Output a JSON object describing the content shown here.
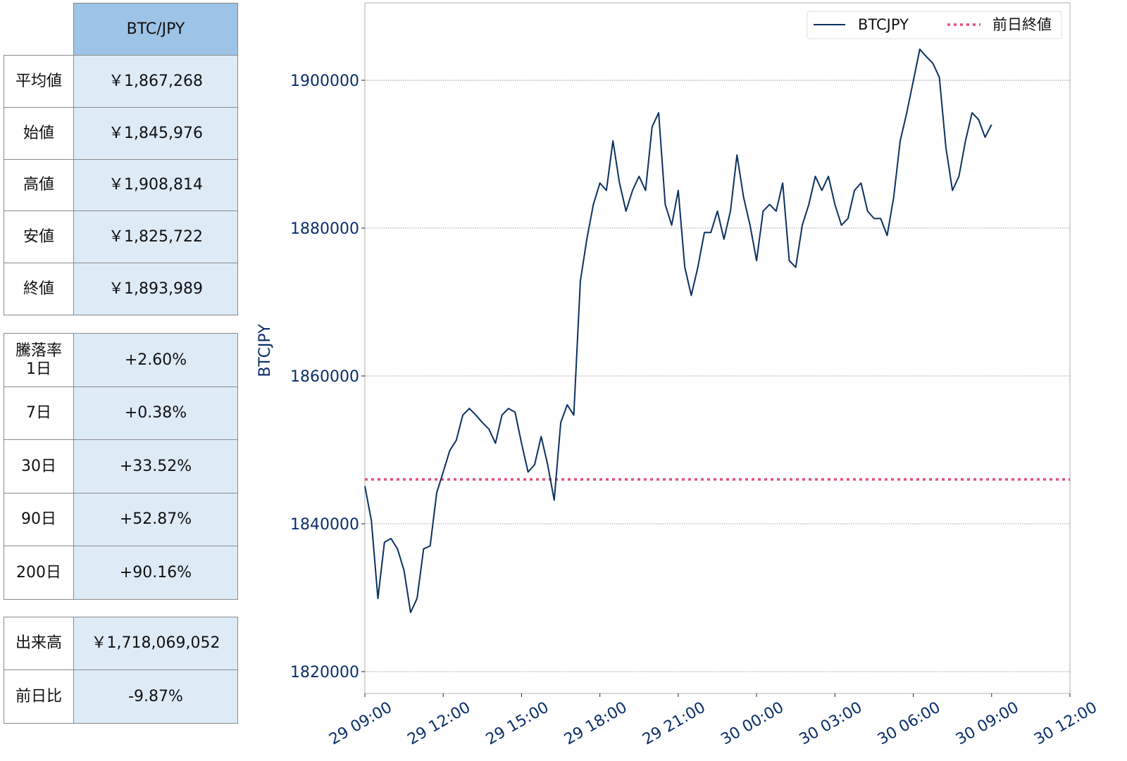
{
  "table": {
    "header": "BTC/JPY",
    "price_rows": [
      {
        "label": "平均値",
        "value": "￥1,867,268"
      },
      {
        "label": "始値",
        "value": "￥1,845,976"
      },
      {
        "label": "高値",
        "value": "￥1,908,814"
      },
      {
        "label": "安値",
        "value": "￥1,825,722"
      },
      {
        "label": "終値",
        "value": "￥1,893,989"
      }
    ],
    "change_rows": [
      {
        "label": "騰落率\n1日",
        "value": "+2.60%"
      },
      {
        "label": "7日",
        "value": "+0.38%"
      },
      {
        "label": "30日",
        "value": "+33.52%"
      },
      {
        "label": "90日",
        "value": "+52.87%"
      },
      {
        "label": "200日",
        "value": "+90.16%"
      }
    ],
    "volume_rows": [
      {
        "label": "出来高",
        "value": "￥1,718,069,052"
      },
      {
        "label": "前日比",
        "value": "-9.87%"
      }
    ]
  },
  "chart_data": {
    "type": "line",
    "ylabel": "BTCJPY",
    "xlabel": "",
    "ylim": [
      1817050,
      1910480
    ],
    "yticks": [
      "1820000",
      "1840000",
      "1860000",
      "1880000",
      "1900000"
    ],
    "xticks": [
      "29 09:00",
      "29 12:00",
      "29 15:00",
      "29 18:00",
      "29 21:00",
      "30 00:00",
      "30 03:00",
      "30 06:00",
      "30 09:00",
      "30 12:00"
    ],
    "grid": "horizontal dotted",
    "legend": "top-right",
    "colors": {
      "line": "#0b3160",
      "reference": "#e0507a"
    },
    "series": [
      {
        "name": "BTCJPY",
        "x": [
          "29 09:00",
          "29 09:15",
          "29 09:30",
          "29 09:45",
          "29 10:00",
          "29 10:15",
          "29 10:30",
          "29 10:45",
          "29 11:00",
          "29 11:15",
          "29 11:30",
          "29 11:45",
          "29 12:00",
          "29 12:15",
          "29 12:30",
          "29 12:45",
          "29 13:00",
          "29 13:15",
          "29 13:30",
          "29 13:45",
          "29 14:00",
          "29 14:15",
          "29 14:30",
          "29 14:45",
          "29 15:00",
          "29 15:15",
          "29 15:30",
          "29 15:45",
          "29 16:00",
          "29 16:15",
          "29 16:30",
          "29 16:45",
          "29 17:00",
          "29 17:15",
          "29 17:30",
          "29 17:45",
          "29 18:00",
          "29 18:15",
          "29 18:30",
          "29 18:45",
          "29 19:00",
          "29 19:15",
          "29 19:30",
          "29 19:45",
          "29 20:00",
          "29 20:15",
          "29 20:30",
          "29 20:45",
          "29 21:00",
          "29 21:15",
          "29 21:30",
          "29 21:45",
          "29 22:00",
          "29 22:15",
          "29 22:30",
          "29 22:45",
          "29 23:00",
          "29 23:15",
          "29 23:30",
          "29 23:45",
          "30 00:00",
          "30 00:15",
          "30 00:30",
          "30 00:45",
          "30 01:00",
          "30 01:15",
          "30 01:30",
          "30 01:45",
          "30 02:00",
          "30 02:15",
          "30 02:30",
          "30 02:45",
          "30 03:00",
          "30 03:15",
          "30 03:30",
          "30 03:45",
          "30 04:00",
          "30 04:15",
          "30 04:30",
          "30 04:45",
          "30 05:00",
          "30 05:15",
          "30 05:30",
          "30 05:45",
          "30 06:00",
          "30 06:15",
          "30 06:30",
          "30 06:45",
          "30 07:00",
          "30 07:15",
          "30 07:30",
          "30 07:45",
          "30 08:00",
          "30 08:15",
          "30 08:30",
          "30 08:45",
          "30 09:00"
        ],
        "values": [
          1845100,
          1840400,
          1829900,
          1837500,
          1838000,
          1836600,
          1833700,
          1828000,
          1829900,
          1836600,
          1837000,
          1844200,
          1847000,
          1849900,
          1851300,
          1854700,
          1855600,
          1854700,
          1853700,
          1852800,
          1850900,
          1854700,
          1855600,
          1855100,
          1850900,
          1847000,
          1848000,
          1851800,
          1848000,
          1843200,
          1853700,
          1856100,
          1854700,
          1872800,
          1878500,
          1883200,
          1886100,
          1885100,
          1891800,
          1886100,
          1882300,
          1885100,
          1887000,
          1885100,
          1893700,
          1895600,
          1883200,
          1880400,
          1885100,
          1874700,
          1870900,
          1874700,
          1879400,
          1879400,
          1882300,
          1878500,
          1882300,
          1889900,
          1884200,
          1880400,
          1875600,
          1882300,
          1883200,
          1882300,
          1886100,
          1875600,
          1874700,
          1880400,
          1883200,
          1887000,
          1885100,
          1887000,
          1883200,
          1880400,
          1881300,
          1885100,
          1886100,
          1882300,
          1881300,
          1881300,
          1879000,
          1884200,
          1891800,
          1895600,
          1899900,
          1904200,
          1903200,
          1902300,
          1900400,
          1890900,
          1885100,
          1887000,
          1891800,
          1895600,
          1894700,
          1892300,
          1894000
        ]
      },
      {
        "name": "前日終値",
        "style": "dotted",
        "value": 1846000
      }
    ]
  }
}
